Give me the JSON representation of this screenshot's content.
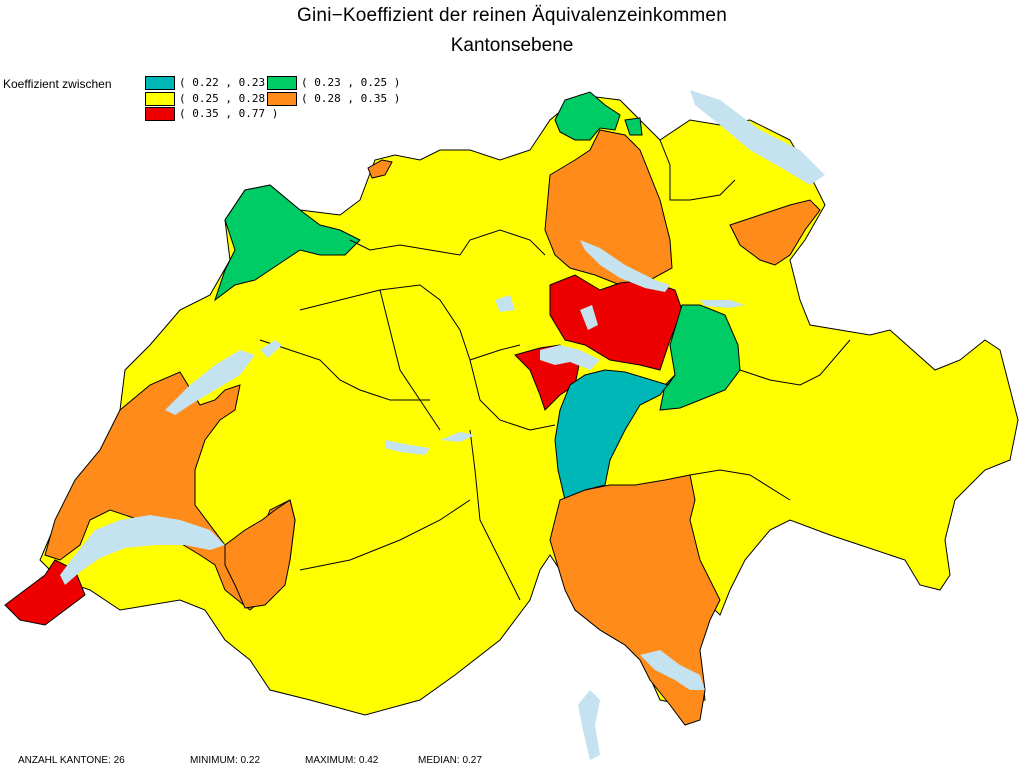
{
  "title_line1": "Gini−Koeffizient der reinen Äquivalenzeinkommen",
  "title_line2": "Kantonsebene",
  "legend": {
    "label": "Koeffizient zwischen",
    "items": [
      {
        "label": "( 0.22 , 0.23 )",
        "color": "#00b7b7"
      },
      {
        "label": "( 0.23 , 0.25 )",
        "color": "#00cc66"
      },
      {
        "label": "( 0.25 , 0.28 )",
        "color": "#ffff00"
      },
      {
        "label": "( 0.28 , 0.35 )",
        "color": "#ff8c1a"
      },
      {
        "label": "( 0.35 , 0.77 )",
        "color": "#ee0000"
      }
    ]
  },
  "colors": {
    "lake": "#c4e2ef",
    "border": "#000000"
  },
  "footer": {
    "count": "ANZAHL KANTONE: 26",
    "min": "MINIMUM: 0.22",
    "max": "MAXIMUM: 0.42",
    "median": "MEDIAN: 0.27"
  }
}
